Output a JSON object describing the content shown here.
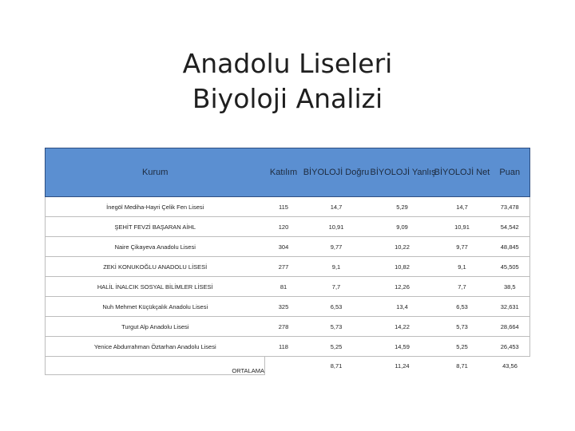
{
  "title": {
    "line1": "Anadolu Liseleri",
    "line2": "Biyoloji Analizi"
  },
  "table": {
    "headers": [
      "Kurum",
      "Katılım",
      "BİYOLOJİ Doğru",
      "BİYOLOJİ Yanlış",
      "BİYOLOJİ Net",
      "Puan"
    ],
    "rows": [
      [
        "İnegöl Mediha-Hayri Çelik Fen Lisesi",
        "115",
        "14,7",
        "5,29",
        "14,7",
        "73,478"
      ],
      [
        "ŞEHİT FEVZİ BAŞARAN AİHL",
        "120",
        "10,91",
        "9,09",
        "10,91",
        "54,542"
      ],
      [
        "Naire Çikayeva Anadolu Lisesi",
        "304",
        "9,77",
        "10,22",
        "9,77",
        "48,845"
      ],
      [
        "ZEKİ KONUKOĞLU ANADOLU LİSESİ",
        "277",
        "9,1",
        "10,82",
        "9,1",
        "45,505"
      ],
      [
        "HALİL İNALCIK SOSYAL BİLİMLER LİSESİ",
        "81",
        "7,7",
        "12,26",
        "7,7",
        "38,5"
      ],
      [
        "Nuh Mehmet Küçükçalık Anadolu Lisesi",
        "325",
        "6,53",
        "13,4",
        "6,53",
        "32,631"
      ],
      [
        "Turgut Alp Anadolu Lisesi",
        "278",
        "5,73",
        "14,22",
        "5,73",
        "28,664"
      ],
      [
        "Yenice Abdurrahman Öztarhan Anadolu Lisesi",
        "118",
        "5,25",
        "14,59",
        "5,25",
        "26,453"
      ]
    ],
    "average": [
      "ORTALAMA",
      "",
      "8,71",
      "11,24",
      "8,71",
      "43,56"
    ]
  },
  "colors": {
    "header_bg": "#5b8fd1",
    "header_border": "#2e4e80"
  }
}
